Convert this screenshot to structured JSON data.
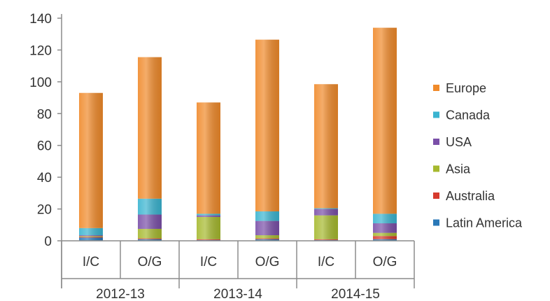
{
  "chart_data": {
    "type": "bar",
    "stacked": true,
    "categories": [
      "I/C",
      "O/G",
      "I/C",
      "O/G",
      "I/C",
      "O/G"
    ],
    "groups": [
      {
        "label": "2012-13",
        "categories": [
          "I/C",
          "O/G"
        ]
      },
      {
        "label": "2013-14",
        "categories": [
          "I/C",
          "O/G"
        ]
      },
      {
        "label": "2014-15",
        "categories": [
          "I/C",
          "O/G"
        ]
      }
    ],
    "series": [
      {
        "name": "Latin America",
        "color": "#2a78b8",
        "values": [
          2,
          1,
          0.5,
          1,
          0.5,
          1
        ]
      },
      {
        "name": "Australia",
        "color": "#d63a2e",
        "values": [
          0.5,
          0.5,
          0.5,
          0.5,
          0.5,
          2
        ]
      },
      {
        "name": "Asia",
        "color": "#a6b92e",
        "values": [
          0.5,
          6,
          14,
          2,
          15,
          2
        ]
      },
      {
        "name": "USA",
        "color": "#7a4fa8",
        "values": [
          0.5,
          9,
          1,
          9,
          4,
          6
        ]
      },
      {
        "name": "Canada",
        "color": "#3ab4d0",
        "values": [
          4.5,
          10,
          1,
          6,
          0.5,
          6
        ]
      },
      {
        "name": "Europe",
        "color": "#f08a2a",
        "values": [
          85,
          89,
          70,
          108,
          78,
          117
        ]
      }
    ],
    "legend_order": [
      "Europe",
      "Canada",
      "USA",
      "Asia",
      "Australia",
      "Latin America"
    ],
    "legend_position": "right",
    "yticks": [
      0,
      20,
      40,
      60,
      80,
      100,
      120,
      140
    ],
    "ylim": [
      0,
      140
    ],
    "grid": false
  }
}
